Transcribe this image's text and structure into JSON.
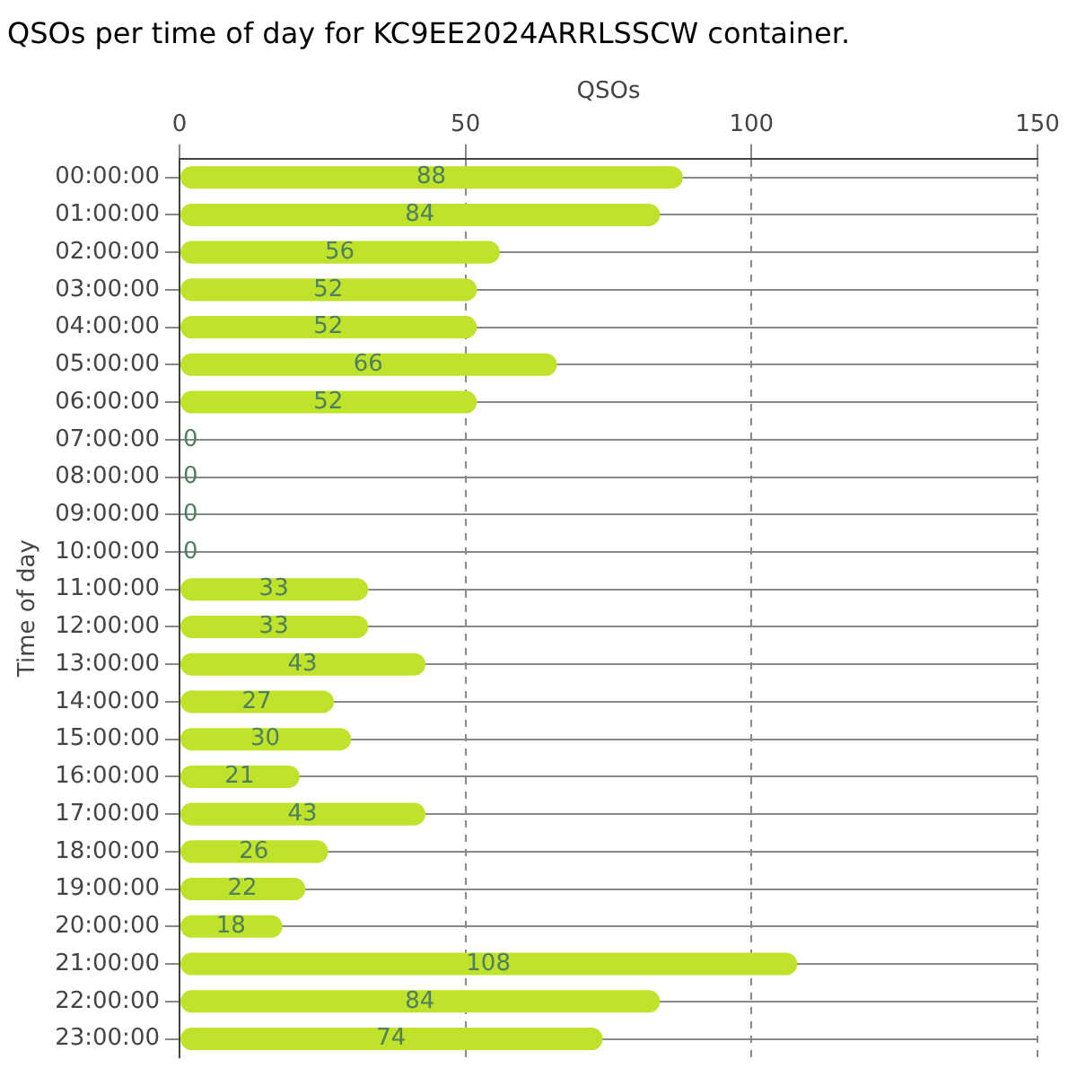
{
  "chart_data": {
    "type": "bar",
    "orientation": "horizontal",
    "title": "QSOs per time of day for KC9EE2024ARRLSSCW container.",
    "xlabel": "QSOs",
    "ylabel": "Time of day",
    "categories": [
      "00:00:00",
      "01:00:00",
      "02:00:00",
      "03:00:00",
      "04:00:00",
      "05:00:00",
      "06:00:00",
      "07:00:00",
      "08:00:00",
      "09:00:00",
      "10:00:00",
      "11:00:00",
      "12:00:00",
      "13:00:00",
      "14:00:00",
      "15:00:00",
      "16:00:00",
      "17:00:00",
      "18:00:00",
      "19:00:00",
      "20:00:00",
      "21:00:00",
      "22:00:00",
      "23:00:00"
    ],
    "values": [
      88,
      84,
      56,
      52,
      52,
      66,
      52,
      0,
      0,
      0,
      0,
      33,
      33,
      43,
      27,
      30,
      21,
      43,
      26,
      22,
      18,
      108,
      84,
      74
    ],
    "color": "#bfe22a",
    "xlim": [
      0,
      150
    ],
    "xticks": [
      0,
      50,
      100,
      150
    ],
    "grid": true,
    "data_labels": true,
    "legend": false
  }
}
